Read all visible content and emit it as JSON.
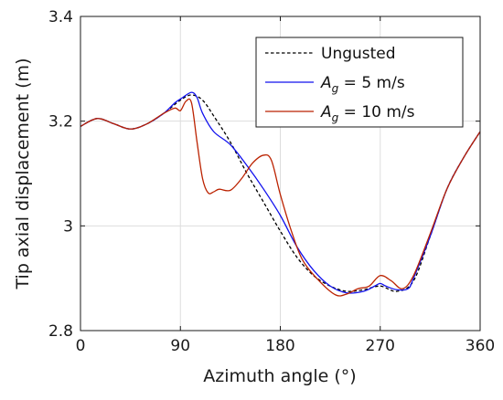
{
  "chart_data": {
    "type": "line",
    "title": "",
    "xlabel": "Azimuth angle (°)",
    "ylabel": "Tip axial displacement (m)",
    "xlim": [
      0,
      360
    ],
    "ylim": [
      2.8,
      3.4
    ],
    "xticks": [
      0,
      90,
      180,
      270,
      360
    ],
    "yticks": [
      2.8,
      3.0,
      3.2,
      3.4
    ],
    "xtick_labels": [
      "0",
      "90",
      "180",
      "270",
      "360"
    ],
    "ytick_labels": [
      "2.8",
      "3",
      "3.2",
      "3.4"
    ],
    "grid": true,
    "legend_position": "top-right",
    "series": [
      {
        "name": "Ungusted",
        "color": "#000000",
        "style": "dashed",
        "x": [
          0,
          15,
          30,
          45,
          60,
          75,
          90,
          100,
          110,
          120,
          135,
          150,
          165,
          180,
          195,
          210,
          225,
          240,
          255,
          270,
          285,
          300,
          315,
          330,
          345,
          360
        ],
        "y": [
          3.19,
          3.205,
          3.195,
          3.185,
          3.195,
          3.215,
          3.24,
          3.25,
          3.24,
          3.21,
          3.16,
          3.1,
          3.045,
          2.99,
          2.94,
          2.905,
          2.885,
          2.875,
          2.878,
          2.885,
          2.875,
          2.895,
          2.98,
          3.07,
          3.13,
          3.18
        ]
      },
      {
        "name": "A_g = 5 m/s",
        "color": "#1111ee",
        "style": "solid",
        "x": [
          0,
          15,
          30,
          45,
          60,
          75,
          85,
          92,
          100,
          105,
          110,
          120,
          135,
          150,
          165,
          180,
          195,
          210,
          225,
          240,
          255,
          265,
          270,
          275,
          285,
          295,
          300,
          315,
          330,
          345,
          360
        ],
        "y": [
          3.19,
          3.205,
          3.195,
          3.185,
          3.195,
          3.215,
          3.235,
          3.245,
          3.255,
          3.245,
          3.215,
          3.18,
          3.155,
          3.115,
          3.07,
          3.02,
          2.96,
          2.915,
          2.885,
          2.872,
          2.875,
          2.885,
          2.89,
          2.885,
          2.878,
          2.88,
          2.9,
          2.98,
          3.07,
          3.13,
          3.18
        ]
      },
      {
        "name": "A_g = 10 m/s",
        "color": "#bb2200",
        "style": "solid",
        "x": [
          0,
          15,
          30,
          45,
          60,
          75,
          85,
          90,
          95,
          100,
          105,
          110,
          115,
          120,
          125,
          135,
          145,
          155,
          165,
          172,
          180,
          190,
          200,
          215,
          230,
          240,
          250,
          260,
          270,
          280,
          290,
          300,
          315,
          330,
          345,
          360
        ],
        "y": [
          3.19,
          3.205,
          3.195,
          3.185,
          3.195,
          3.215,
          3.225,
          3.22,
          3.238,
          3.235,
          3.16,
          3.09,
          3.063,
          3.065,
          3.07,
          3.068,
          3.09,
          3.12,
          3.135,
          3.125,
          3.06,
          2.99,
          2.935,
          2.895,
          2.868,
          2.87,
          2.88,
          2.885,
          2.905,
          2.895,
          2.88,
          2.905,
          2.985,
          3.07,
          3.13,
          3.18
        ]
      }
    ],
    "legend": {
      "entries": [
        {
          "prefix": "Ungusted",
          "sym": "",
          "sub": "",
          "suffix": ""
        },
        {
          "prefix": "",
          "sym": "A",
          "sub": "g",
          "suffix": " = 5 m/s"
        },
        {
          "prefix": "",
          "sym": "A",
          "sub": "g",
          "suffix": " = 10 m/s"
        }
      ]
    }
  }
}
